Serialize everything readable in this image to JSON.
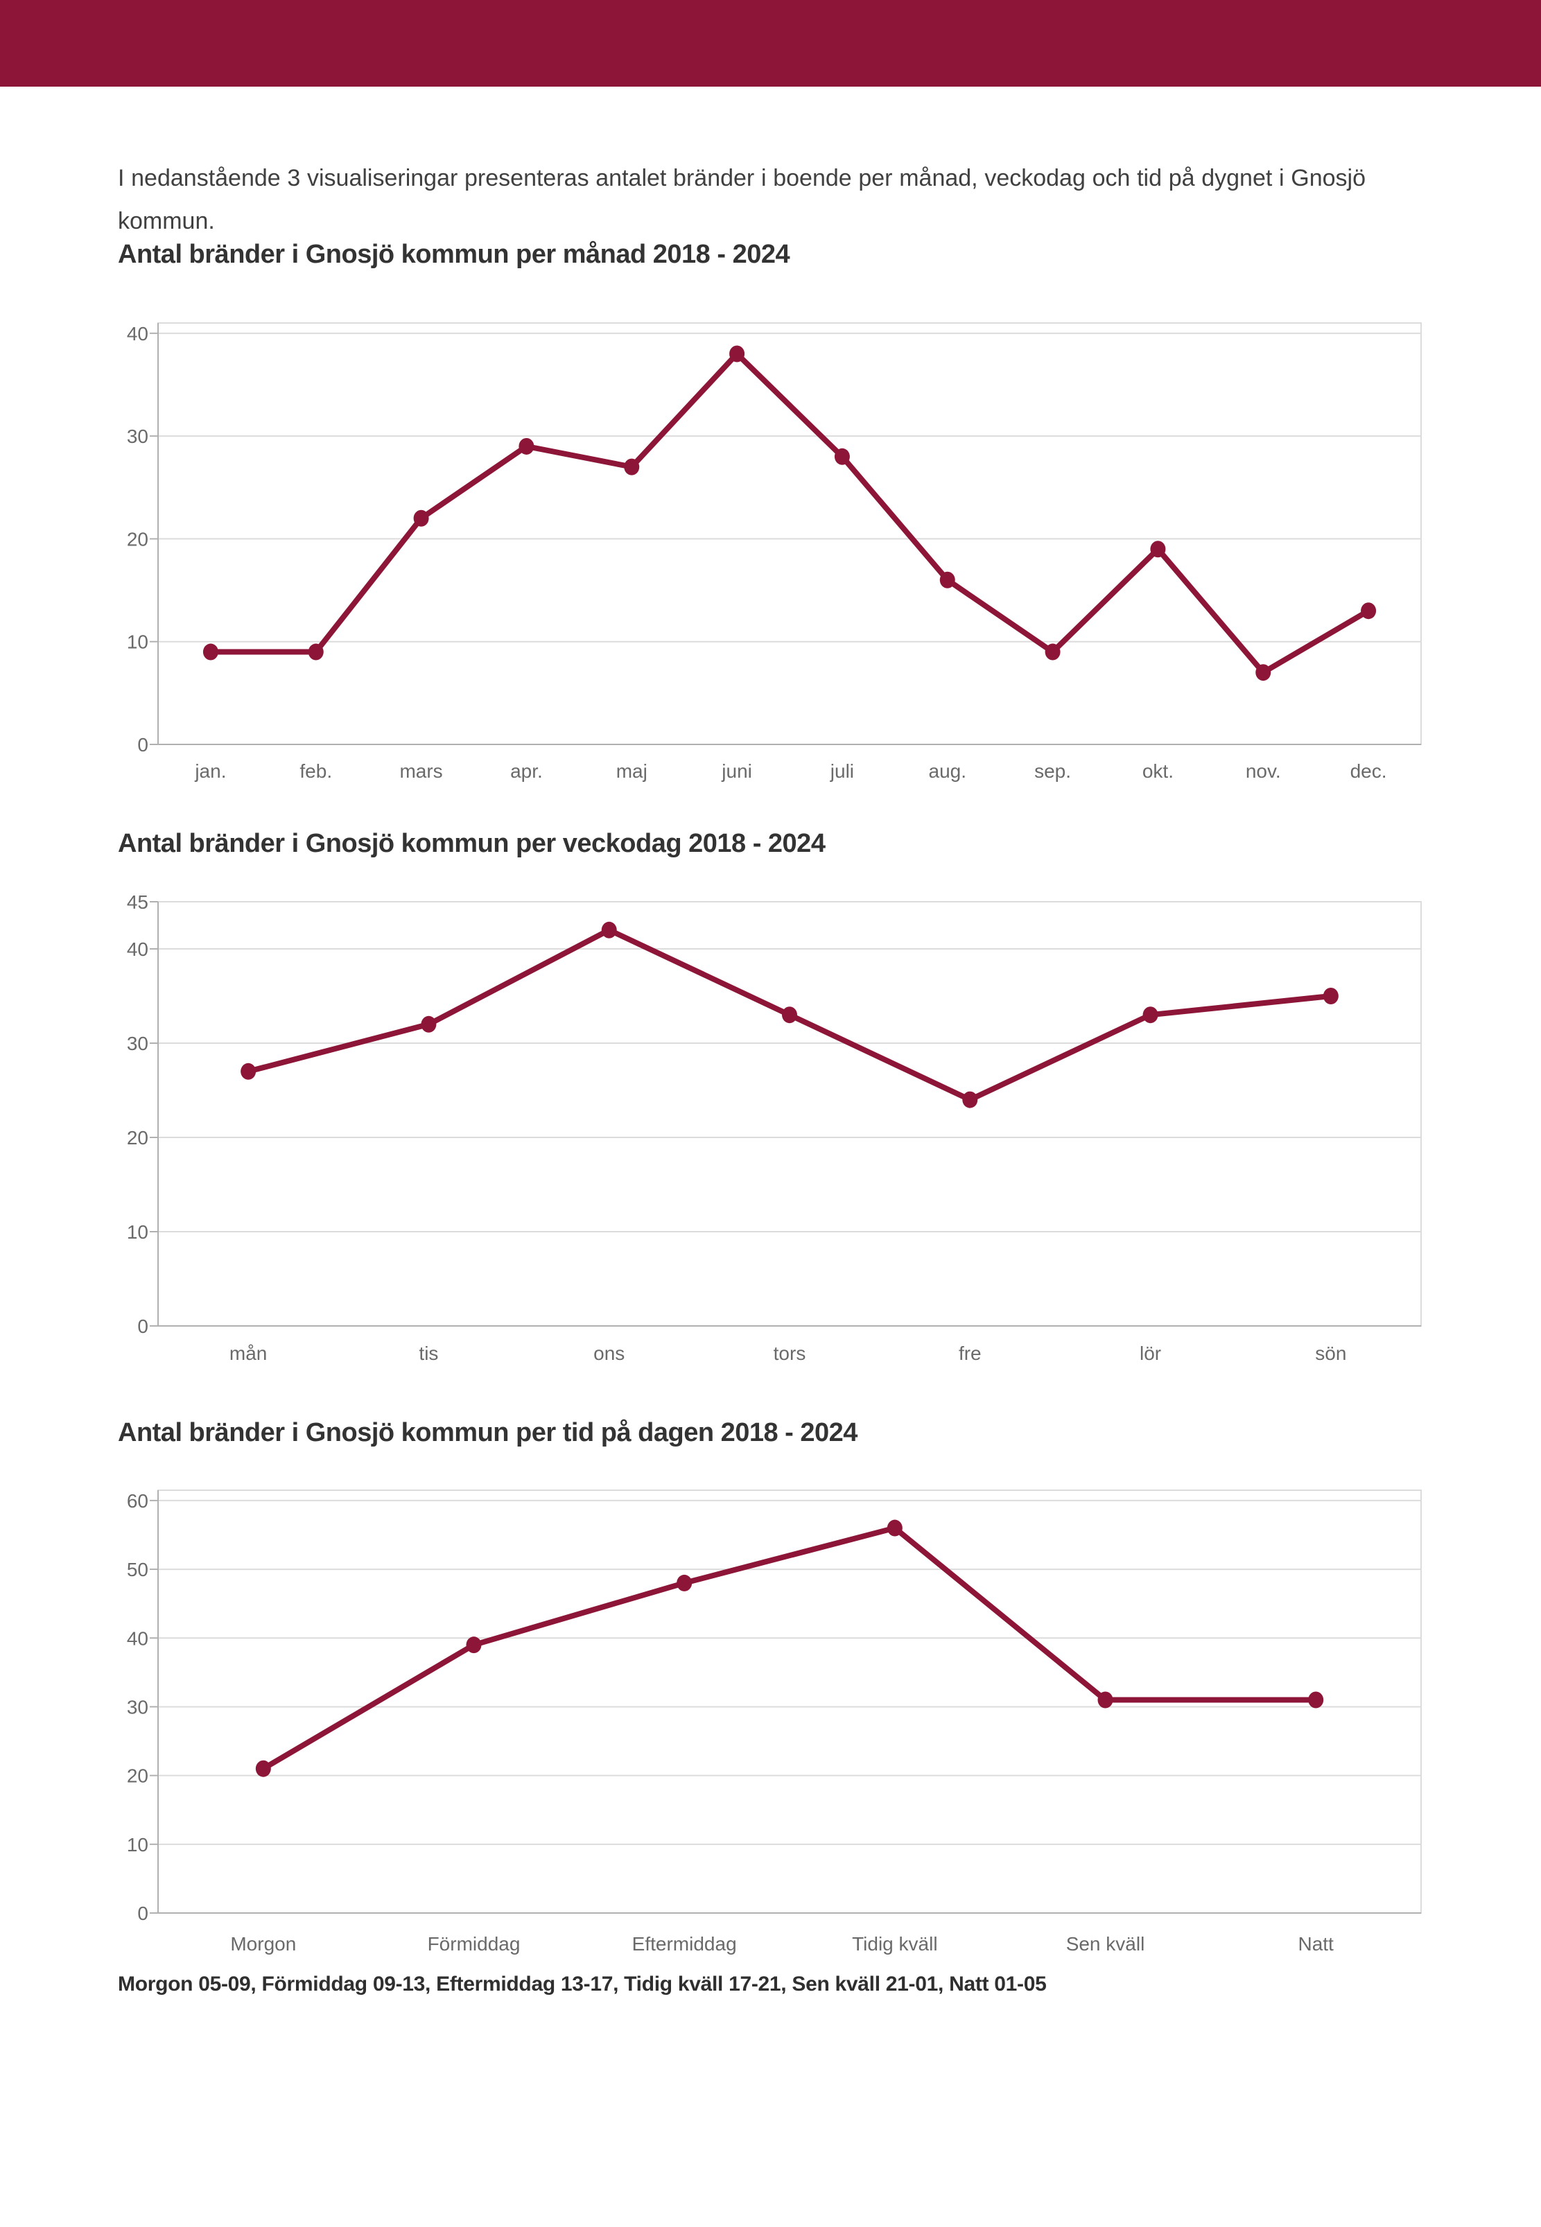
{
  "banner": {
    "color": "#8D1638"
  },
  "intro": {
    "text": "I nedanstående 3 visualiseringar presenteras antalet bränder i boende per månad, veckodag och tid på dygnet i Gnosjö kommun."
  },
  "footer": {
    "text": "Morgon 05-09, Förmiddag 09-13, Eftermiddag 13-17, Tidig kväll 17-21, Sen kväll 21-01, Natt 01-05"
  },
  "colors": {
    "accent": "#8D1638",
    "line": "#8D1638",
    "point": "#8D1638",
    "grid": "#dcdcdc",
    "axis": "#b0b0b0",
    "tick_text": "#6a6a6a",
    "title_text": "#333333",
    "body_text": "#404040"
  },
  "chart_data": [
    {
      "type": "line",
      "title": "Antal bränder i Gnosjö kommun per månad 2018 - 2024",
      "categories": [
        "jan.",
        "feb.",
        "mars",
        "apr.",
        "maj",
        "juni",
        "juli",
        "aug.",
        "sep.",
        "okt.",
        "nov.",
        "dec."
      ],
      "values": [
        9,
        9,
        22,
        29,
        27,
        38,
        28,
        16,
        9,
        19,
        7,
        13
      ],
      "xlabel": "",
      "ylabel": "",
      "ylim": [
        0,
        41
      ],
      "yticks": [
        0,
        10,
        20,
        30,
        40
      ],
      "grid": true,
      "legend": false
    },
    {
      "type": "line",
      "title": "Antal bränder i Gnosjö kommun per veckodag 2018 - 2024",
      "categories": [
        "mån",
        "tis",
        "ons",
        "tors",
        "fre",
        "lör",
        "sön"
      ],
      "values": [
        27,
        32,
        42,
        33,
        24,
        33,
        35
      ],
      "xlabel": "",
      "ylabel": "",
      "ylim": [
        0,
        45
      ],
      "yticks": [
        0,
        10,
        20,
        30,
        40,
        45
      ],
      "grid": true,
      "legend": false
    },
    {
      "type": "line",
      "title": "Antal bränder i Gnosjö kommun per tid på dagen 2018 - 2024",
      "categories": [
        "Morgon",
        "Förmiddag",
        "Eftermiddag",
        "Tidig kväll",
        "Sen kväll",
        "Natt"
      ],
      "values": [
        21,
        39,
        48,
        56,
        31,
        31
      ],
      "xlabel": "",
      "ylabel": "",
      "ylim": [
        0,
        61.5
      ],
      "yticks": [
        0,
        10,
        20,
        30,
        40,
        50,
        60
      ],
      "grid": true,
      "legend": false
    }
  ]
}
